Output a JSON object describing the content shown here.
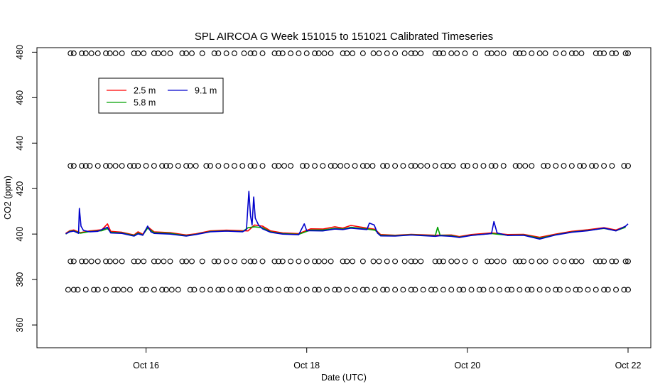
{
  "chart_data": {
    "type": "line",
    "title": "SPL AIRCOA G  Week 151015 to 151021  Calibrated Timeseries",
    "xlabel": "Date (UTC)",
    "ylabel": "CO2 (ppm)",
    "x_unit": "days",
    "xlim": [
      15.0,
      22.0
    ],
    "ylim": [
      350,
      482
    ],
    "x_ticks": [
      {
        "value": 16,
        "label": "Oct 16"
      },
      {
        "value": 18,
        "label": "Oct 18"
      },
      {
        "value": 20,
        "label": "Oct 20"
      },
      {
        "value": 22,
        "label": "Oct 22"
      }
    ],
    "y_ticks": [
      {
        "value": 360,
        "label": "360"
      },
      {
        "value": 380,
        "label": "380"
      },
      {
        "value": 400,
        "label": "400"
      },
      {
        "value": 420,
        "label": "420"
      },
      {
        "value": 440,
        "label": "440"
      },
      {
        "value": 460,
        "label": "460"
      },
      {
        "value": 480,
        "label": "480"
      }
    ],
    "legend": {
      "placement": "top-left",
      "entries": [
        {
          "name": "2.5 m",
          "color": "#ff0000"
        },
        {
          "name": "5.8 m",
          "color": "#00a000"
        },
        {
          "name": "9.1 m",
          "color": "#0000cc"
        }
      ]
    },
    "series": [
      {
        "name": "2.5 m",
        "color": "#ff0000",
        "points": [
          [
            15.0,
            400.3
          ],
          [
            15.05,
            401.5
          ],
          [
            15.1,
            401.8
          ],
          [
            15.18,
            400.6
          ],
          [
            15.3,
            401.4
          ],
          [
            15.45,
            401.9
          ],
          [
            15.52,
            404.5
          ],
          [
            15.56,
            401.2
          ],
          [
            15.7,
            400.8
          ],
          [
            15.85,
            399.6
          ],
          [
            15.9,
            401.0
          ],
          [
            15.96,
            399.9
          ],
          [
            16.02,
            403.2
          ],
          [
            16.1,
            401.0
          ],
          [
            16.3,
            400.6
          ],
          [
            16.5,
            399.6
          ],
          [
            16.62,
            400.1
          ],
          [
            16.8,
            401.4
          ],
          [
            17.0,
            401.7
          ],
          [
            17.2,
            401.5
          ],
          [
            17.27,
            401.4
          ],
          [
            17.35,
            404.0
          ],
          [
            17.45,
            403.5
          ],
          [
            17.55,
            401.4
          ],
          [
            17.7,
            400.5
          ],
          [
            17.9,
            400.2
          ],
          [
            18.05,
            402.3
          ],
          [
            18.2,
            402.2
          ],
          [
            18.35,
            403.2
          ],
          [
            18.45,
            402.6
          ],
          [
            18.55,
            403.8
          ],
          [
            18.75,
            402.6
          ],
          [
            18.85,
            402.1
          ],
          [
            18.92,
            399.8
          ],
          [
            19.1,
            399.5
          ],
          [
            19.3,
            399.9
          ],
          [
            19.6,
            399.5
          ],
          [
            19.8,
            399.6
          ],
          [
            19.9,
            398.9
          ],
          [
            20.05,
            399.8
          ],
          [
            20.3,
            400.5
          ],
          [
            20.5,
            399.8
          ],
          [
            20.7,
            399.9
          ],
          [
            20.9,
            398.6
          ],
          [
            21.1,
            400.0
          ],
          [
            21.3,
            401.2
          ],
          [
            21.5,
            401.9
          ],
          [
            21.7,
            402.8
          ],
          [
            21.85,
            401.8
          ],
          [
            21.97,
            403.4
          ]
        ]
      },
      {
        "name": "5.8 m",
        "color": "#00a000",
        "points": [
          [
            15.0,
            400.0
          ],
          [
            15.05,
            401.2
          ],
          [
            15.1,
            401.4
          ],
          [
            15.18,
            400.4
          ],
          [
            15.3,
            401.1
          ],
          [
            15.45,
            401.5
          ],
          [
            15.52,
            402.4
          ],
          [
            15.56,
            400.8
          ],
          [
            15.7,
            400.5
          ],
          [
            15.85,
            399.4
          ],
          [
            15.9,
            400.4
          ],
          [
            15.96,
            399.6
          ],
          [
            16.02,
            402.6
          ],
          [
            16.1,
            400.6
          ],
          [
            16.3,
            400.3
          ],
          [
            16.5,
            399.3
          ],
          [
            16.62,
            399.9
          ],
          [
            16.8,
            401.1
          ],
          [
            17.0,
            401.4
          ],
          [
            17.2,
            401.1
          ],
          [
            17.27,
            402.8
          ],
          [
            17.35,
            403.2
          ],
          [
            17.45,
            402.8
          ],
          [
            17.55,
            401.0
          ],
          [
            17.7,
            400.2
          ],
          [
            17.9,
            399.9
          ],
          [
            18.05,
            401.8
          ],
          [
            18.2,
            401.8
          ],
          [
            18.35,
            402.5
          ],
          [
            18.45,
            402.2
          ],
          [
            18.55,
            403.0
          ],
          [
            18.75,
            402.2
          ],
          [
            18.85,
            401.7
          ],
          [
            18.92,
            399.5
          ],
          [
            19.1,
            399.3
          ],
          [
            19.3,
            399.7
          ],
          [
            19.6,
            399.2
          ],
          [
            19.63,
            403.0
          ],
          [
            19.66,
            399.5
          ],
          [
            19.8,
            399.3
          ],
          [
            19.9,
            398.6
          ],
          [
            20.05,
            399.5
          ],
          [
            20.3,
            400.2
          ],
          [
            20.5,
            399.5
          ],
          [
            20.7,
            399.6
          ],
          [
            20.9,
            398.2
          ],
          [
            21.1,
            399.7
          ],
          [
            21.3,
            400.9
          ],
          [
            21.5,
            401.6
          ],
          [
            21.7,
            402.5
          ],
          [
            21.85,
            401.5
          ],
          [
            21.97,
            403.0
          ]
        ]
      },
      {
        "name": "9.1 m",
        "color": "#0000cc",
        "points": [
          [
            15.0,
            400.1
          ],
          [
            15.05,
            401.0
          ],
          [
            15.1,
            401.3
          ],
          [
            15.16,
            400.3
          ],
          [
            15.17,
            411.3
          ],
          [
            15.19,
            403.5
          ],
          [
            15.22,
            401.6
          ],
          [
            15.3,
            401.0
          ],
          [
            15.4,
            401.2
          ],
          [
            15.45,
            402.0
          ],
          [
            15.52,
            403.0
          ],
          [
            15.56,
            400.5
          ],
          [
            15.7,
            400.3
          ],
          [
            15.85,
            399.1
          ],
          [
            15.9,
            400.1
          ],
          [
            15.96,
            399.5
          ],
          [
            16.02,
            403.5
          ],
          [
            16.06,
            401.0
          ],
          [
            16.1,
            400.3
          ],
          [
            16.3,
            400.0
          ],
          [
            16.5,
            399.1
          ],
          [
            16.62,
            399.8
          ],
          [
            16.8,
            401.0
          ],
          [
            17.0,
            401.3
          ],
          [
            17.2,
            401.0
          ],
          [
            17.25,
            402.0
          ],
          [
            17.28,
            418.8
          ],
          [
            17.3,
            408.0
          ],
          [
            17.32,
            404.0
          ],
          [
            17.34,
            416.3
          ],
          [
            17.36,
            407.0
          ],
          [
            17.4,
            404.0
          ],
          [
            17.45,
            402.3
          ],
          [
            17.55,
            400.8
          ],
          [
            17.7,
            400.0
          ],
          [
            17.9,
            399.7
          ],
          [
            17.97,
            404.5
          ],
          [
            18.0,
            401.5
          ],
          [
            18.05,
            401.5
          ],
          [
            18.2,
            401.4
          ],
          [
            18.35,
            402.2
          ],
          [
            18.45,
            402.0
          ],
          [
            18.55,
            402.6
          ],
          [
            18.75,
            402.0
          ],
          [
            18.78,
            404.8
          ],
          [
            18.84,
            404.0
          ],
          [
            18.88,
            400.5
          ],
          [
            18.92,
            399.2
          ],
          [
            19.1,
            399.1
          ],
          [
            19.3,
            399.6
          ],
          [
            19.6,
            399.0
          ],
          [
            19.66,
            399.3
          ],
          [
            19.8,
            399.0
          ],
          [
            19.9,
            398.5
          ],
          [
            20.05,
            399.4
          ],
          [
            20.3,
            400.2
          ],
          [
            20.33,
            405.5
          ],
          [
            20.37,
            400.5
          ],
          [
            20.5,
            399.4
          ],
          [
            20.7,
            399.5
          ],
          [
            20.9,
            397.8
          ],
          [
            21.1,
            399.6
          ],
          [
            21.3,
            400.8
          ],
          [
            21.5,
            401.5
          ],
          [
            21.7,
            402.6
          ],
          [
            21.85,
            401.4
          ],
          [
            21.97,
            403.5
          ],
          [
            22.0,
            404.5
          ]
        ]
      },
      {
        "name": "",
        "type": "markers",
        "color": "#000000",
        "y": 479.5,
        "x": [
          15.06,
          15.1,
          15.2,
          15.25,
          15.32,
          15.4,
          15.5,
          15.55,
          15.62,
          15.7,
          15.85,
          15.9,
          15.97,
          16.1,
          16.15,
          16.22,
          16.3,
          16.45,
          16.5,
          16.57,
          16.7,
          16.85,
          16.9,
          17.0,
          17.1,
          17.22,
          17.3,
          17.35,
          17.45,
          17.6,
          17.65,
          17.7,
          17.8,
          17.9,
          18.0,
          18.1,
          18.15,
          18.22,
          18.3,
          18.45,
          18.5,
          18.57,
          18.7,
          18.83,
          18.9,
          19.0,
          19.1,
          19.22,
          19.3,
          19.35,
          19.42,
          19.6,
          19.65,
          19.7,
          19.8,
          19.87,
          19.97,
          20.1,
          20.25,
          20.3,
          20.37,
          20.45,
          20.6,
          20.65,
          20.7,
          20.8,
          20.9,
          20.97,
          21.1,
          21.2,
          21.3,
          21.35,
          21.42,
          21.6,
          21.65,
          21.7,
          21.8,
          21.85,
          21.97,
          22.0
        ]
      },
      {
        "name": "",
        "type": "markers",
        "color": "#000000",
        "y": 430.0,
        "x": [
          15.06,
          15.1,
          15.2,
          15.25,
          15.3,
          15.4,
          15.5,
          15.55,
          15.62,
          15.7,
          15.8,
          15.85,
          15.9,
          16.0,
          16.1,
          16.2,
          16.25,
          16.3,
          16.4,
          16.5,
          16.55,
          16.62,
          16.75,
          16.8,
          16.9,
          17.0,
          17.1,
          17.2,
          17.3,
          17.35,
          17.45,
          17.6,
          17.65,
          17.72,
          17.8,
          17.95,
          18.0,
          18.1,
          18.2,
          18.3,
          18.35,
          18.42,
          18.5,
          18.6,
          18.7,
          18.75,
          18.82,
          18.95,
          19.0,
          19.1,
          19.2,
          19.3,
          19.35,
          19.42,
          19.5,
          19.6,
          19.7,
          19.75,
          19.82,
          19.95,
          20.0,
          20.1,
          20.2,
          20.3,
          20.35,
          20.45,
          20.6,
          20.65,
          20.72,
          20.8,
          20.95,
          21.0,
          21.1,
          21.2,
          21.3,
          21.4,
          21.45,
          21.55,
          21.6,
          21.7,
          21.8,
          21.95,
          22.0
        ]
      },
      {
        "name": "",
        "type": "markers",
        "color": "#000000",
        "y": 388.0,
        "x": [
          15.06,
          15.1,
          15.2,
          15.25,
          15.32,
          15.4,
          15.5,
          15.55,
          15.62,
          15.7,
          15.85,
          15.9,
          15.97,
          16.1,
          16.15,
          16.22,
          16.3,
          16.45,
          16.5,
          16.57,
          16.7,
          16.85,
          16.9,
          17.0,
          17.1,
          17.22,
          17.3,
          17.35,
          17.45,
          17.6,
          17.65,
          17.7,
          17.8,
          17.9,
          18.0,
          18.1,
          18.15,
          18.22,
          18.3,
          18.45,
          18.5,
          18.57,
          18.7,
          18.83,
          18.9,
          19.0,
          19.1,
          19.22,
          19.3,
          19.35,
          19.42,
          19.6,
          19.65,
          19.7,
          19.8,
          19.87,
          19.97,
          20.1,
          20.25,
          20.3,
          20.37,
          20.45,
          20.6,
          20.65,
          20.7,
          20.8,
          20.9,
          20.97,
          21.1,
          21.2,
          21.3,
          21.35,
          21.42,
          21.6,
          21.65,
          21.7,
          21.8,
          21.85,
          21.97,
          22.0
        ]
      },
      {
        "name": "",
        "type": "markers",
        "color": "#000000",
        "y": 375.5,
        "x": [
          15.03,
          15.1,
          15.15,
          15.25,
          15.35,
          15.4,
          15.5,
          15.6,
          15.65,
          15.72,
          15.8,
          15.95,
          16.0,
          16.1,
          16.2,
          16.25,
          16.32,
          16.4,
          16.55,
          16.6,
          16.7,
          16.8,
          16.9,
          16.95,
          17.05,
          17.15,
          17.2,
          17.3,
          17.4,
          17.5,
          17.55,
          17.65,
          17.75,
          17.8,
          17.9,
          18.0,
          18.1,
          18.15,
          18.25,
          18.35,
          18.4,
          18.5,
          18.6,
          18.7,
          18.75,
          18.85,
          18.95,
          19.0,
          19.1,
          19.2,
          19.3,
          19.35,
          19.45,
          19.55,
          19.6,
          19.7,
          19.8,
          19.9,
          19.95,
          20.05,
          20.15,
          20.2,
          20.3,
          20.4,
          20.5,
          20.55,
          20.65,
          20.75,
          20.8,
          20.9,
          21.0,
          21.1,
          21.15,
          21.25,
          21.35,
          21.4,
          21.5,
          21.6,
          21.7,
          21.75,
          21.85,
          21.95,
          22.0
        ]
      }
    ]
  }
}
